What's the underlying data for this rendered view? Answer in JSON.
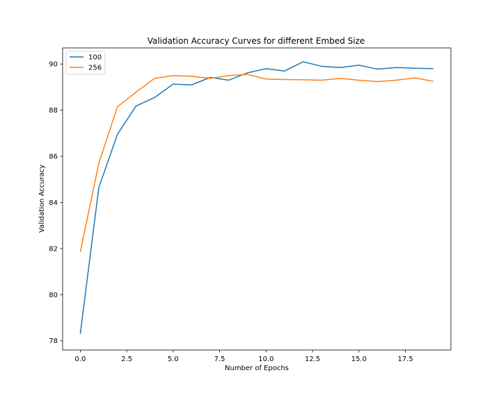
{
  "chart_data": {
    "type": "line",
    "title": "Validation Accuracy Curves for different Embed Size",
    "xlabel": "Number of Epochs",
    "ylabel": "Validation Accuracy",
    "xlim": [
      -0.95,
      19.95
    ],
    "ylim": [
      77.6,
      90.7
    ],
    "xticks": [
      0.0,
      2.5,
      5.0,
      7.5,
      10.0,
      12.5,
      15.0,
      17.5
    ],
    "xtick_labels": [
      "0.0",
      "2.5",
      "5.0",
      "7.5",
      "10.0",
      "12.5",
      "15.0",
      "17.5"
    ],
    "yticks": [
      78,
      80,
      82,
      84,
      86,
      88,
      90
    ],
    "ytick_labels": [
      "78",
      "80",
      "82",
      "84",
      "86",
      "88",
      "90"
    ],
    "grid": false,
    "legend_position": "top-left",
    "x": [
      0,
      1,
      2,
      3,
      4,
      5,
      6,
      7,
      8,
      9,
      10,
      11,
      12,
      13,
      14,
      15,
      16,
      17,
      18,
      19
    ],
    "series": [
      {
        "name": "100",
        "color": "#1f77b4",
        "values": [
          78.3,
          84.65,
          86.95,
          88.18,
          88.55,
          89.13,
          89.1,
          89.42,
          89.3,
          89.62,
          89.8,
          89.7,
          90.1,
          89.9,
          89.85,
          89.95,
          89.78,
          89.85,
          89.82,
          89.8
        ]
      },
      {
        "name": "256",
        "color": "#ff7f0e",
        "values": [
          81.85,
          85.7,
          88.15,
          88.78,
          89.38,
          89.5,
          89.47,
          89.38,
          89.5,
          89.55,
          89.35,
          89.33,
          89.32,
          89.3,
          89.38,
          89.3,
          89.24,
          89.3,
          89.4,
          89.25
        ]
      }
    ]
  }
}
